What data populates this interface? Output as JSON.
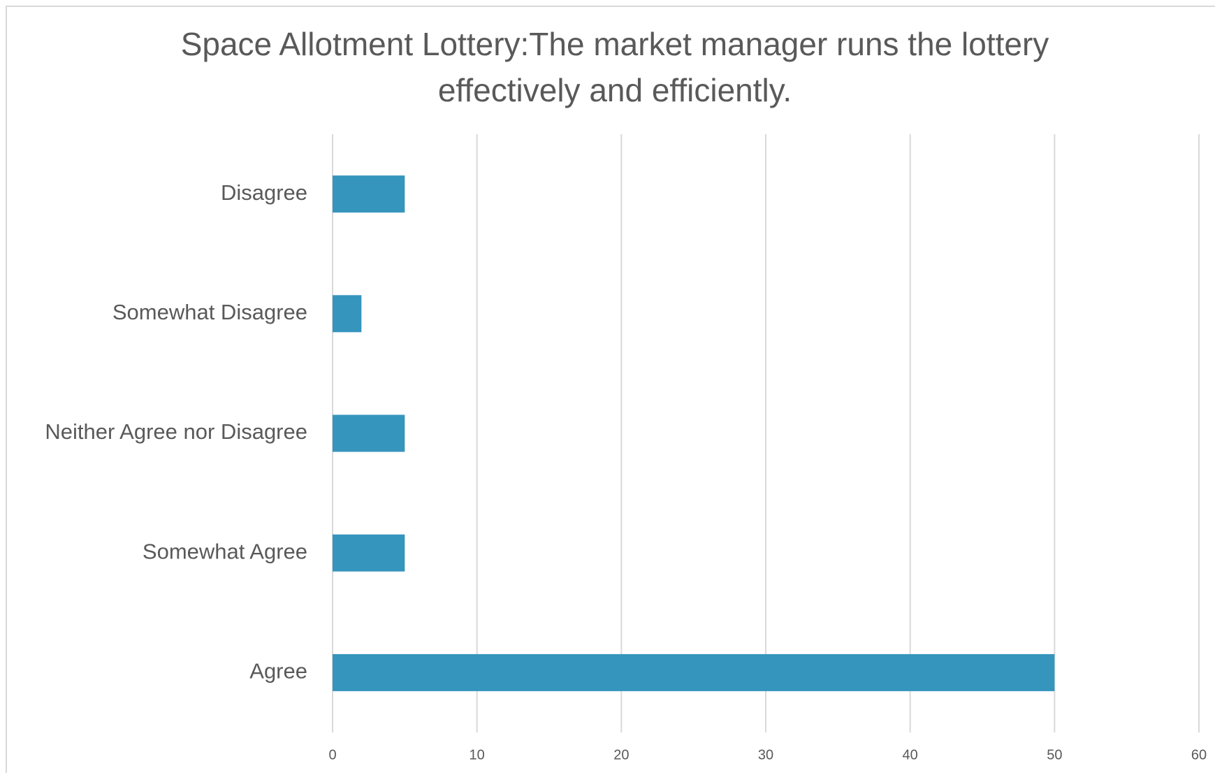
{
  "chart_data": {
    "type": "bar",
    "orientation": "horizontal",
    "title": "Space Allotment Lottery:The market manager runs the lottery effectively and efficiently.",
    "categories": [
      "Disagree",
      "Somewhat Disagree",
      "Neither Agree nor Disagree",
      "Somewhat Agree",
      "Agree"
    ],
    "values": [
      5,
      2,
      5,
      5,
      50
    ],
    "color": "#3595bd",
    "xlim": [
      0,
      60
    ],
    "xticks": [
      0,
      10,
      20,
      30,
      40,
      50,
      60
    ],
    "grid": true
  }
}
